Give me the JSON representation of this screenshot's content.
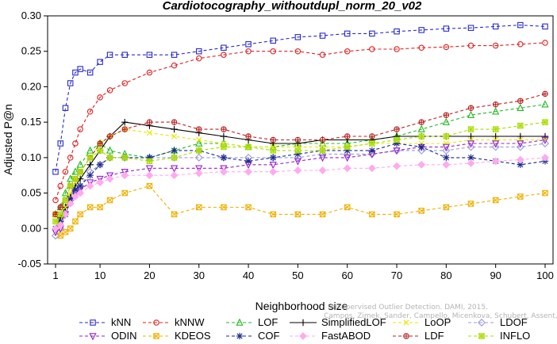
{
  "chart_data": {
    "type": "line",
    "title": "Cardiotocography_withoutdupl_norm_20_v02",
    "xlabel": "Neighborhood size",
    "ylabel": "Adjusted P@n",
    "xlim": [
      1,
      100
    ],
    "ylim": [
      -0.05,
      0.3
    ],
    "x_ticks": [
      1,
      10,
      20,
      30,
      40,
      50,
      60,
      70,
      80,
      90,
      100
    ],
    "y_ticks": [
      "-0.05",
      "0.00",
      "0.05",
      "0.10",
      "0.15",
      "0.20",
      "0.25",
      "0.30"
    ],
    "grid": false,
    "legend_position": "bottom",
    "watermark": [
      "Campos, Zimek, Sander, Campello, Micenkova, Schubert, Assent, Houle",
      "Unsupervised Outlier Detection. DAMI, 2015."
    ],
    "series": [
      {
        "name": "kNN",
        "color": "#2a2ad0",
        "marker": "square",
        "dash": "4,3",
        "x": [
          1,
          2,
          3,
          4,
          5,
          6,
          8,
          10,
          12,
          15,
          20,
          25,
          30,
          35,
          40,
          45,
          50,
          55,
          60,
          65,
          70,
          75,
          80,
          85,
          90,
          95,
          100
        ],
        "y": [
          0.08,
          0.12,
          0.17,
          0.205,
          0.22,
          0.225,
          0.22,
          0.235,
          0.245,
          0.245,
          0.245,
          0.245,
          0.25,
          0.255,
          0.26,
          0.265,
          0.27,
          0.272,
          0.275,
          0.275,
          0.278,
          0.28,
          0.282,
          0.283,
          0.285,
          0.287,
          0.285
        ]
      },
      {
        "name": "kNNW",
        "color": "#e02020",
        "marker": "circle",
        "dash": "4,3",
        "x": [
          1,
          2,
          3,
          4,
          5,
          6,
          8,
          10,
          12,
          15,
          20,
          25,
          30,
          35,
          40,
          45,
          50,
          55,
          60,
          65,
          70,
          75,
          80,
          85,
          90,
          95,
          100
        ],
        "y": [
          0.04,
          0.06,
          0.08,
          0.1,
          0.12,
          0.14,
          0.165,
          0.185,
          0.195,
          0.205,
          0.22,
          0.23,
          0.24,
          0.245,
          0.25,
          0.25,
          0.25,
          0.245,
          0.25,
          0.253,
          0.253,
          0.255,
          0.256,
          0.258,
          0.258,
          0.26,
          0.262
        ]
      },
      {
        "name": "LOF",
        "color": "#22bb22",
        "marker": "triangle",
        "dash": "4,3",
        "x": [
          1,
          2,
          3,
          4,
          5,
          6,
          8,
          10,
          12,
          15,
          20,
          25,
          30,
          35,
          40,
          45,
          50,
          55,
          60,
          65,
          70,
          75,
          80,
          85,
          90,
          95,
          100
        ],
        "y": [
          0.02,
          0.03,
          0.05,
          0.07,
          0.08,
          0.09,
          0.11,
          0.12,
          0.11,
          0.105,
          0.1,
          0.11,
          0.12,
          0.12,
          0.115,
          0.115,
          0.12,
          0.12,
          0.12,
          0.125,
          0.13,
          0.14,
          0.15,
          0.16,
          0.165,
          0.17,
          0.175
        ]
      },
      {
        "name": "SimplifiedLOF",
        "color": "#000000",
        "marker": "plus",
        "dash": "",
        "x": [
          1,
          2,
          3,
          4,
          5,
          6,
          8,
          10,
          12,
          15,
          20,
          25,
          30,
          35,
          40,
          45,
          50,
          55,
          60,
          65,
          70,
          75,
          80,
          85,
          90,
          95,
          100
        ],
        "y": [
          0.0,
          0.015,
          0.03,
          0.045,
          0.06,
          0.07,
          0.09,
          0.11,
          0.13,
          0.15,
          0.145,
          0.14,
          0.135,
          0.13,
          0.125,
          0.12,
          0.12,
          0.125,
          0.125,
          0.125,
          0.13,
          0.13,
          0.13,
          0.13,
          0.13,
          0.13,
          0.13
        ]
      },
      {
        "name": "LoOP",
        "color": "#e8e800",
        "marker": "x",
        "dash": "4,3",
        "x": [
          1,
          2,
          3,
          4,
          5,
          6,
          8,
          10,
          12,
          15,
          20,
          25,
          30,
          35,
          40,
          45,
          50,
          55,
          60,
          65,
          70,
          75,
          80,
          85,
          90,
          95,
          100
        ],
        "y": [
          0.0,
          0.01,
          0.03,
          0.05,
          0.065,
          0.08,
          0.1,
          0.12,
          0.13,
          0.14,
          0.135,
          0.13,
          0.125,
          0.12,
          0.115,
          0.115,
          0.115,
          0.115,
          0.115,
          0.12,
          0.12,
          0.12,
          0.12,
          0.125,
          0.125,
          0.125,
          0.125
        ]
      },
      {
        "name": "LDOF",
        "color": "#9999dd",
        "marker": "diamond",
        "dash": "4,3",
        "x": [
          1,
          2,
          3,
          4,
          5,
          6,
          8,
          10,
          12,
          15,
          20,
          25,
          30,
          35,
          40,
          45,
          50,
          55,
          60,
          65,
          70,
          75,
          80,
          85,
          90,
          95,
          100
        ],
        "y": [
          -0.01,
          0.0,
          0.02,
          0.04,
          0.05,
          0.06,
          0.08,
          0.09,
          0.1,
          0.1,
          0.1,
          0.1,
          0.1,
          0.1,
          0.1,
          0.1,
          0.1,
          0.105,
          0.105,
          0.105,
          0.11,
          0.11,
          0.11,
          0.115,
          0.115,
          0.115,
          0.12
        ]
      },
      {
        "name": "ODIN",
        "color": "#9922cc",
        "marker": "triangle-down",
        "dash": "4,3",
        "x": [
          1,
          2,
          3,
          4,
          5,
          6,
          8,
          10,
          12,
          15,
          20,
          25,
          30,
          35,
          40,
          45,
          50,
          55,
          60,
          65,
          70,
          75,
          80,
          85,
          90,
          95,
          100
        ],
        "y": [
          -0.005,
          0.0,
          0.02,
          0.04,
          0.05,
          0.055,
          0.065,
          0.07,
          0.075,
          0.08,
          0.085,
          0.085,
          0.085,
          0.085,
          0.09,
          0.09,
          0.095,
          0.1,
          0.1,
          0.105,
          0.11,
          0.115,
          0.115,
          0.12,
          0.12,
          0.12,
          0.125
        ]
      },
      {
        "name": "KDEOS",
        "color": "#f0b000",
        "marker": "square-x",
        "dash": "4,3",
        "x": [
          1,
          2,
          3,
          4,
          5,
          6,
          8,
          10,
          12,
          15,
          20,
          25,
          30,
          35,
          40,
          45,
          50,
          55,
          60,
          65,
          70,
          75,
          80,
          85,
          90,
          95,
          100
        ],
        "y": [
          0.02,
          -0.01,
          -0.005,
          0.0,
          0.01,
          0.02,
          0.03,
          0.03,
          0.04,
          0.05,
          0.06,
          0.02,
          0.03,
          0.03,
          0.03,
          0.02,
          0.02,
          0.02,
          0.03,
          0.02,
          0.02,
          0.025,
          0.03,
          0.035,
          0.04,
          0.045,
          0.05
        ]
      },
      {
        "name": "COF",
        "color": "#1a2a8a",
        "marker": "star",
        "dash": "4,3",
        "x": [
          1,
          2,
          3,
          4,
          5,
          6,
          8,
          10,
          12,
          15,
          20,
          25,
          30,
          35,
          40,
          45,
          50,
          55,
          60,
          65,
          70,
          75,
          80,
          85,
          90,
          95,
          100
        ],
        "y": [
          0.0,
          0.01,
          0.02,
          0.04,
          0.055,
          0.06,
          0.075,
          0.09,
          0.1,
          0.1,
          0.1,
          0.11,
          0.11,
          0.1,
          0.095,
          0.1,
          0.105,
          0.11,
          0.11,
          0.11,
          0.12,
          0.115,
          0.1,
          0.1,
          0.095,
          0.09,
          0.095
        ]
      },
      {
        "name": "FastABOD",
        "color": "#ffaaee",
        "marker": "diamond-filled",
        "dash": "4,3",
        "x": [
          1,
          2,
          3,
          4,
          5,
          6,
          8,
          10,
          12,
          15,
          20,
          25,
          30,
          35,
          40,
          45,
          50,
          55,
          60,
          65,
          70,
          75,
          80,
          85,
          90,
          95,
          100
        ],
        "y": [
          0.0,
          0.005,
          0.02,
          0.035,
          0.045,
          0.05,
          0.06,
          0.065,
          0.07,
          0.075,
          0.075,
          0.075,
          0.078,
          0.08,
          0.08,
          0.08,
          0.082,
          0.082,
          0.085,
          0.085,
          0.088,
          0.09,
          0.09,
          0.092,
          0.095,
          0.097,
          0.1
        ]
      },
      {
        "name": "LDF",
        "color": "#bb2222",
        "marker": "circle-plus",
        "dash": "4,3",
        "x": [
          1,
          2,
          3,
          4,
          5,
          6,
          8,
          10,
          12,
          15,
          20,
          25,
          30,
          35,
          40,
          45,
          50,
          55,
          60,
          65,
          70,
          75,
          80,
          85,
          90,
          95,
          100
        ],
        "y": [
          0.02,
          0.03,
          0.04,
          0.06,
          0.07,
          0.08,
          0.1,
          0.12,
          0.13,
          0.14,
          0.15,
          0.15,
          0.14,
          0.14,
          0.13,
          0.125,
          0.125,
          0.125,
          0.13,
          0.13,
          0.14,
          0.15,
          0.16,
          0.17,
          0.175,
          0.18,
          0.19
        ]
      },
      {
        "name": "INFLO",
        "color": "#aadd00",
        "marker": "star-box",
        "dash": "4,3",
        "x": [
          1,
          2,
          3,
          4,
          5,
          6,
          8,
          10,
          12,
          15,
          20,
          25,
          30,
          35,
          40,
          45,
          50,
          55,
          60,
          65,
          70,
          75,
          80,
          85,
          90,
          95,
          100
        ],
        "y": [
          0.01,
          0.02,
          0.04,
          0.06,
          0.07,
          0.08,
          0.1,
          0.11,
          0.1,
          0.1,
          0.095,
          0.1,
          0.11,
          0.115,
          0.115,
          0.11,
          0.11,
          0.11,
          0.115,
          0.12,
          0.125,
          0.13,
          0.13,
          0.14,
          0.14,
          0.145,
          0.15
        ]
      }
    ]
  }
}
